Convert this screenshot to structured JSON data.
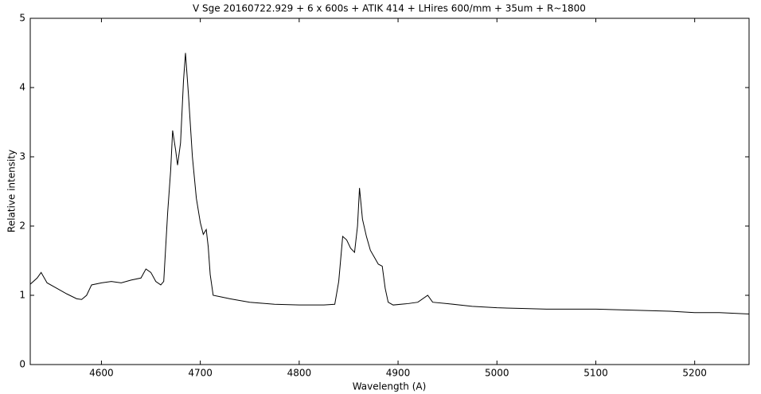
{
  "chart_data": {
    "type": "line",
    "title": "V Sge 20160722.929 + 6  x 600s + ATIK 414 + LHires 600/mm + 35um + R~1800",
    "x_label": "Wavelength (A)",
    "y_label": "Relative intensity",
    "x": [
      4528,
      4535,
      4539,
      4545,
      4555,
      4565,
      4575,
      4580,
      4585,
      4590,
      4600,
      4610,
      4620,
      4630,
      4640,
      4645,
      4650,
      4655,
      4660,
      4663,
      4667,
      4670,
      4672,
      4675,
      4677,
      4680,
      4683,
      4685,
      4688,
      4692,
      4696,
      4700,
      4703,
      4706,
      4708,
      4710,
      4713,
      4720,
      4730,
      4750,
      4775,
      4800,
      4825,
      4836,
      4840,
      4844,
      4848,
      4852,
      4856,
      4859,
      4861,
      4864,
      4868,
      4872,
      4876,
      4880,
      4884,
      4887,
      4890,
      4895,
      4910,
      4920,
      4930,
      4935,
      4950,
      4975,
      5000,
      5025,
      5050,
      5075,
      5100,
      5125,
      5150,
      5175,
      5200,
      5225,
      5255
    ],
    "values": [
      1.16,
      1.25,
      1.33,
      1.18,
      1.1,
      1.02,
      0.95,
      0.94,
      1.0,
      1.15,
      1.18,
      1.2,
      1.18,
      1.22,
      1.25,
      1.38,
      1.33,
      1.2,
      1.15,
      1.2,
      2.2,
      2.8,
      3.38,
      3.1,
      2.88,
      3.2,
      4.1,
      4.5,
      3.9,
      3.0,
      2.4,
      2.05,
      1.88,
      1.95,
      1.7,
      1.3,
      1.0,
      0.98,
      0.95,
      0.9,
      0.87,
      0.86,
      0.86,
      0.87,
      1.2,
      1.85,
      1.8,
      1.68,
      1.62,
      2.0,
      2.55,
      2.1,
      1.85,
      1.65,
      1.55,
      1.45,
      1.42,
      1.1,
      0.9,
      0.86,
      0.88,
      0.9,
      1.0,
      0.9,
      0.88,
      0.84,
      0.82,
      0.81,
      0.8,
      0.8,
      0.8,
      0.79,
      0.78,
      0.77,
      0.75,
      0.75,
      0.73
    ],
    "color": "#000000",
    "xlim": [
      4528,
      5255
    ],
    "xticks": [
      4600,
      4700,
      4800,
      4900,
      5000,
      5100,
      5200
    ],
    "ylim": [
      0,
      5
    ],
    "yticks": [
      0,
      1,
      2,
      3,
      4,
      5
    ]
  }
}
